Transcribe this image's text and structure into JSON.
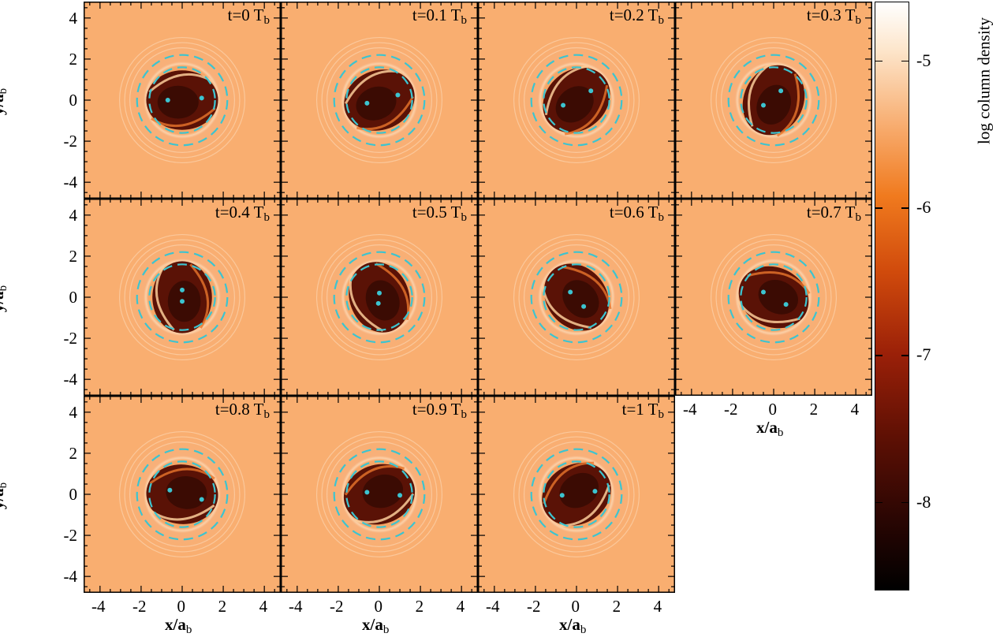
{
  "panels": [
    {
      "label": "t=0 T",
      "sub": "b",
      "angle": 0,
      "sinkA": [
        -0.7,
        0.0
      ],
      "sinkB": [
        0.95,
        0.1
      ]
    },
    {
      "label": "t=0.1 T",
      "sub": "b",
      "angle": 20,
      "sinkA": [
        -0.6,
        -0.15
      ],
      "sinkB": [
        0.9,
        0.25
      ]
    },
    {
      "label": "t=0.2 T",
      "sub": "b",
      "angle": 40,
      "sinkA": [
        -0.65,
        -0.25
      ],
      "sinkB": [
        0.7,
        0.45
      ]
    },
    {
      "label": "t=0.3 T",
      "sub": "b",
      "angle": 65,
      "sinkA": [
        -0.5,
        -0.25
      ],
      "sinkB": [
        0.35,
        0.45
      ]
    },
    {
      "label": "t=0.4 T",
      "sub": "b",
      "angle": 90,
      "sinkA": [
        0.0,
        0.35
      ],
      "sinkB": [
        0.0,
        -0.2
      ]
    },
    {
      "label": "t=0.5 T",
      "sub": "b",
      "angle": 110,
      "sinkA": [
        0.0,
        0.2
      ],
      "sinkB": [
        -0.05,
        -0.3
      ]
    },
    {
      "label": "t=0.6 T",
      "sub": "b",
      "angle": 130,
      "sinkA": [
        -0.3,
        0.25
      ],
      "sinkB": [
        0.35,
        -0.45
      ]
    },
    {
      "label": "t=0.7 T",
      "sub": "b",
      "angle": 155,
      "sinkA": [
        -0.5,
        0.25
      ],
      "sinkB": [
        0.6,
        -0.35
      ]
    },
    {
      "label": "t=0.8 T",
      "sub": "b",
      "angle": 175,
      "sinkA": [
        -0.6,
        0.2
      ],
      "sinkB": [
        0.95,
        -0.25
      ]
    },
    {
      "label": "t=0.9 T",
      "sub": "b",
      "angle": 195,
      "sinkA": [
        -0.6,
        0.1
      ],
      "sinkB": [
        1.0,
        -0.05
      ]
    },
    {
      "label": "t=1 T",
      "sub": "b",
      "angle": 210,
      "sinkA": [
        -0.7,
        -0.05
      ],
      "sinkB": [
        0.9,
        0.15
      ]
    }
  ],
  "axes": {
    "ticks": [
      "-4",
      "-2",
      "0",
      "2",
      "4"
    ],
    "tick_values": [
      -4,
      -2,
      0,
      2,
      4
    ],
    "range": [
      -4.8,
      4.8
    ],
    "ylabel": "y/a",
    "xlabel": "x/a",
    "label_sub": "b"
  },
  "colorbar": {
    "label": "log column density",
    "ticks": [
      "-5",
      "-6",
      "-7",
      "-8"
    ],
    "tick_values": [
      -5,
      -6,
      -7,
      -8
    ],
    "range": [
      -8.6,
      -4.6
    ]
  },
  "colors": {
    "background_disc": "#f9ae70",
    "cavity": "#5a1206",
    "sink": "#3cc4d0",
    "dashed": "#3cc4d0"
  },
  "orbit": {
    "inner_radius": 1.6,
    "outer_radius": 2.2
  }
}
